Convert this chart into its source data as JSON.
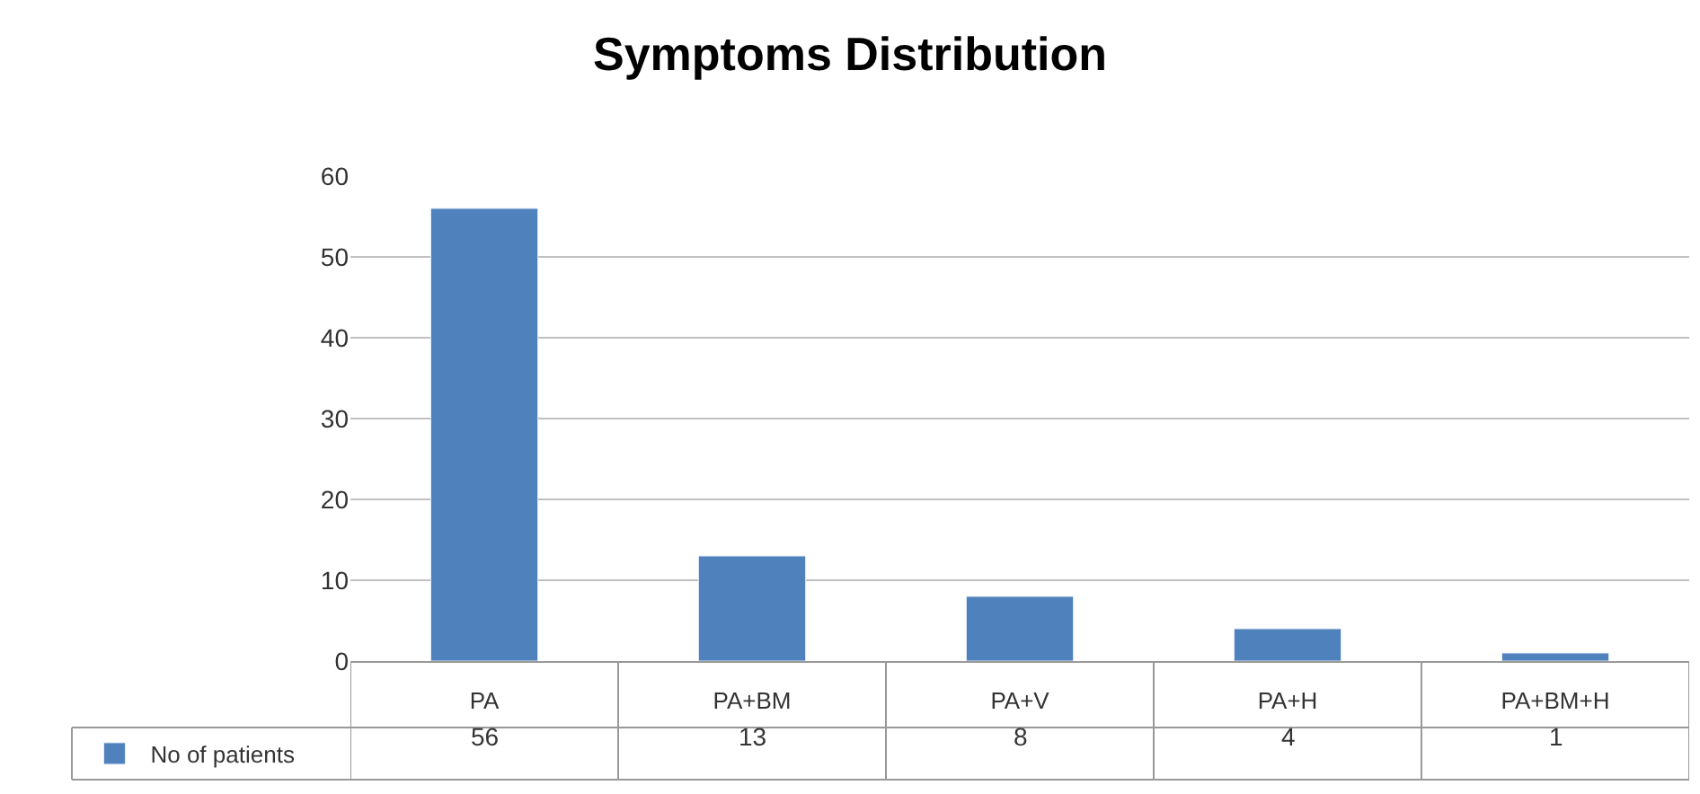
{
  "chart_data": {
    "type": "bar",
    "title": "Symptoms Distribution",
    "categories": [
      "PA",
      "PA+BM",
      "PA+V",
      "PA+H",
      "PA+BM+H"
    ],
    "series": [
      {
        "name": "No of patients",
        "color": "#4f81bd",
        "values": [
          56,
          13,
          8,
          4,
          1
        ]
      }
    ],
    "ylim": [
      0,
      60
    ],
    "yticks": [
      0,
      10,
      20,
      30,
      40,
      50,
      60
    ],
    "grid": "y",
    "legend": "bottom",
    "data_labels": true
  }
}
